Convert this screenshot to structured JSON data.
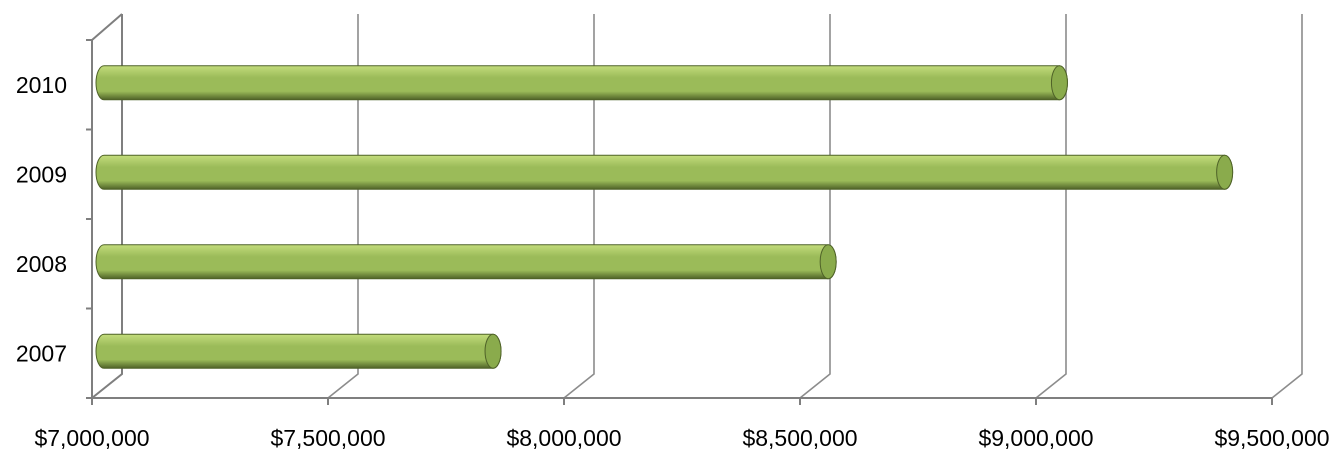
{
  "chart_data": {
    "type": "bar",
    "orientation": "horizontal",
    "style": "3d-cylinder",
    "categories": [
      "2010",
      "2009",
      "2008",
      "2007"
    ],
    "values": [
      9020000,
      9370000,
      8530000,
      7820000
    ],
    "x_ticks": [
      "$7,000,000",
      "$7,500,000",
      "$8,000,000",
      "$8,500,000",
      "$9,000,000",
      "$9,500,000"
    ],
    "xlim": [
      7000000,
      9500000
    ],
    "title": "",
    "xlabel": "",
    "ylabel": "",
    "grid": true,
    "legend": "none",
    "colors": {
      "bar_light": "#c3dc7c",
      "bar_mid": "#9bbb59",
      "bar_dark": "#4f6228",
      "bar_end": "#8aab4c",
      "grid": "#8c8c8c"
    }
  }
}
